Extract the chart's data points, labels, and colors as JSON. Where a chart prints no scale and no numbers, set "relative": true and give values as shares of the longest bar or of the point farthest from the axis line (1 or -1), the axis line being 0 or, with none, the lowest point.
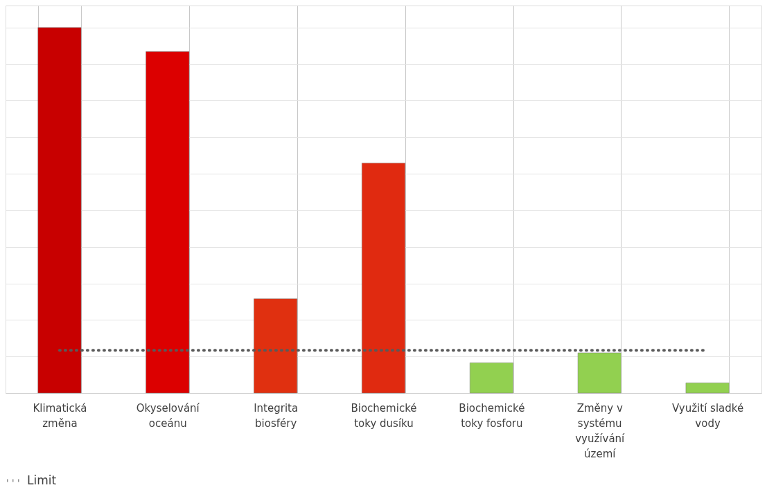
{
  "chart_data": {
    "type": "bar",
    "relative": true,
    "categories": [
      "Klimatická změna",
      "Okyselování oceánu",
      "Integrita biosféry",
      "Biochemické toky dusíku",
      "Biochemické toky fosforu",
      "Změny v systému využívání území",
      "Využití sladké vody"
    ],
    "values": [
      1,
      0.934,
      0.258,
      0.629,
      0.083,
      0.11,
      0.028
    ],
    "colors": [
      "#c80000",
      "#dc0000",
      "#e03010",
      "#e02a10",
      "#92d050",
      "#92d050",
      "#92d050"
    ],
    "series": [
      {
        "name": "Limit",
        "type": "line",
        "color": "#595959",
        "line_style": "dotted",
        "values": [
          0.117,
          0.117,
          0.117,
          0.117,
          0.117,
          0.117,
          0.117
        ]
      }
    ],
    "grid": true,
    "legend": "bottom"
  }
}
